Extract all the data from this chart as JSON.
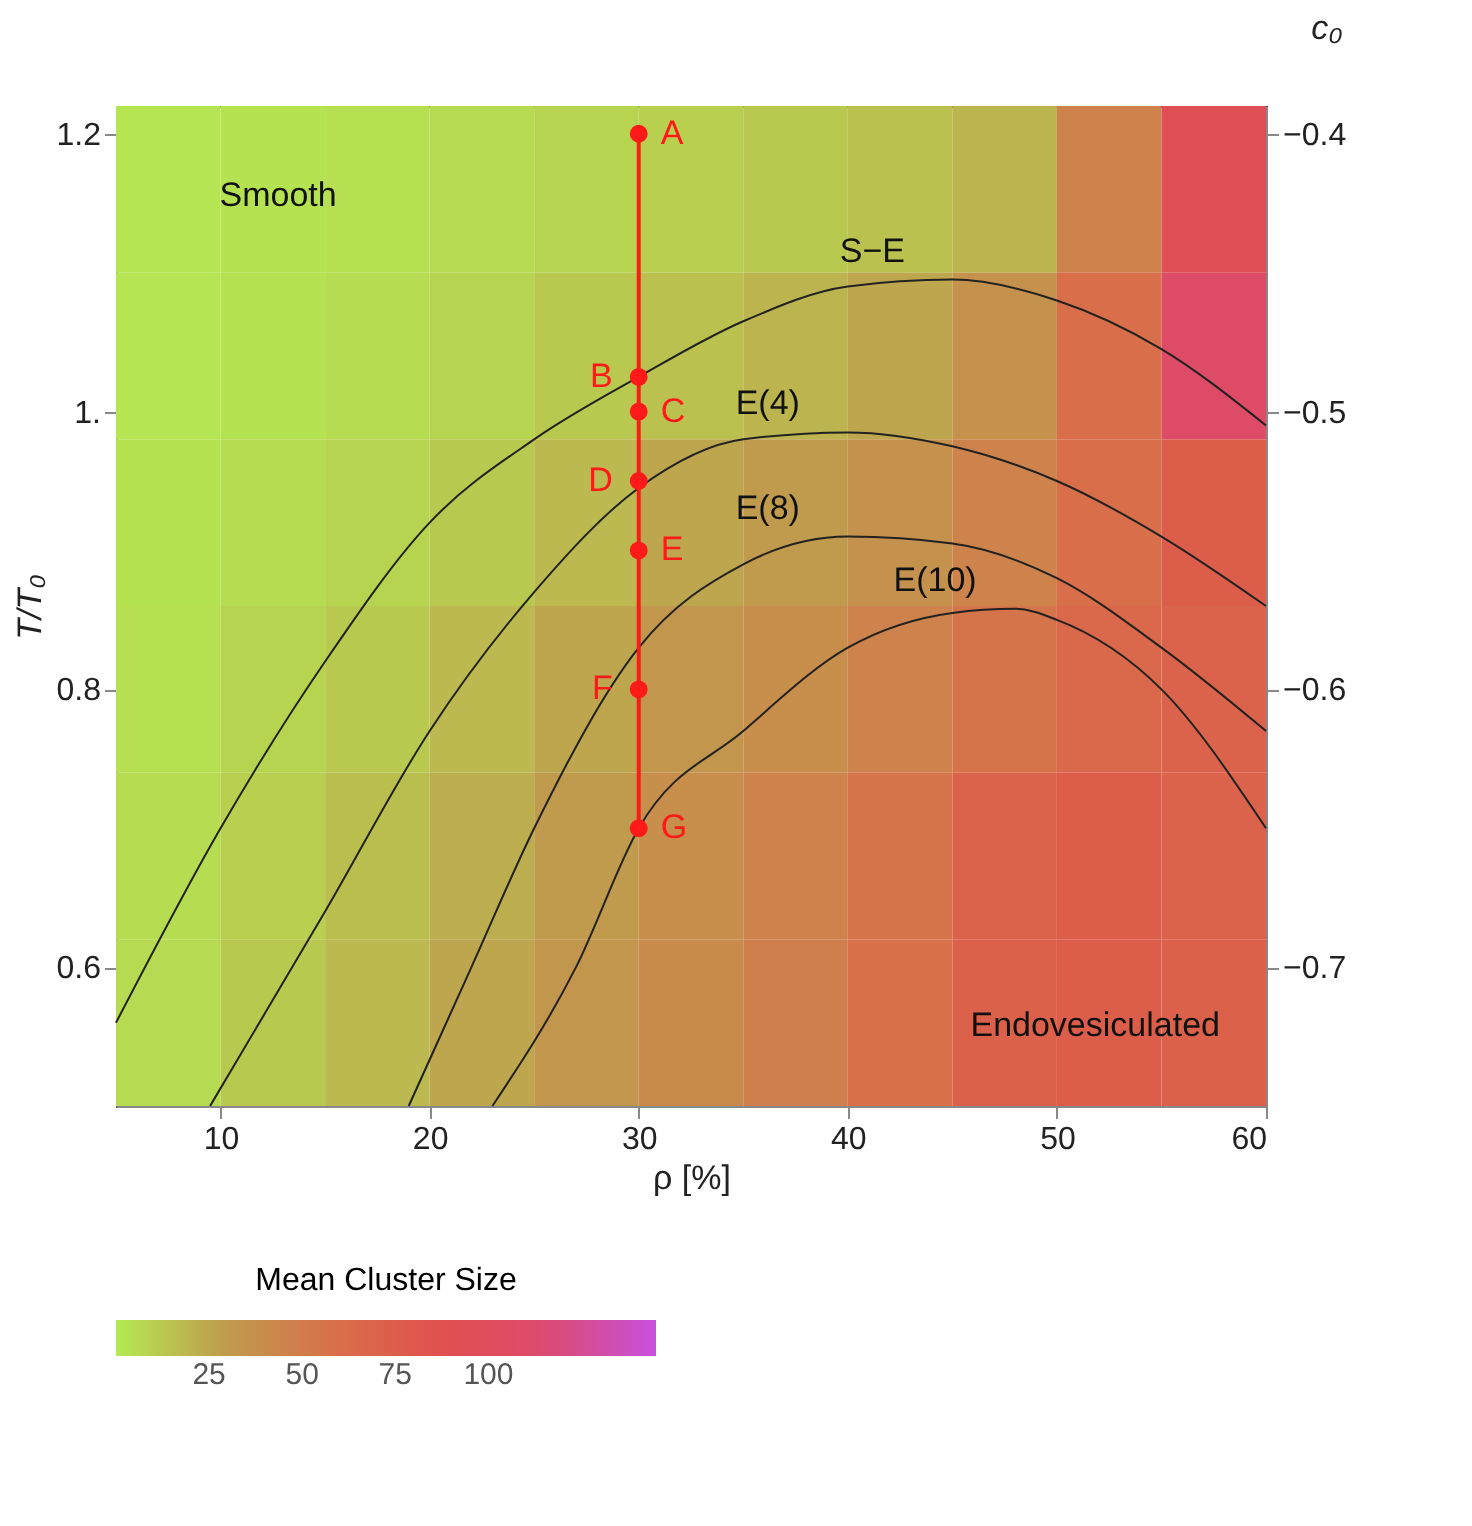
{
  "chart_data": {
    "type": "heatmap",
    "x": [
      7.5,
      12.5,
      17.5,
      22.5,
      27.5,
      32.5,
      37.5,
      42.5,
      47.5,
      52.5,
      57.5
    ],
    "cells": [
      [
        2,
        3,
        4,
        6,
        8,
        10,
        12,
        15,
        20,
        45,
        95
      ],
      [
        2,
        3,
        5,
        8,
        12,
        15,
        20,
        25,
        35,
        60,
        110
      ],
      [
        3,
        5,
        8,
        12,
        18,
        25,
        30,
        35,
        45,
        60,
        75
      ],
      [
        4,
        8,
        12,
        18,
        25,
        32,
        38,
        45,
        55,
        65,
        70
      ],
      [
        5,
        10,
        16,
        22,
        30,
        38,
        45,
        55,
        70,
        75,
        70
      ],
      [
        6,
        12,
        18,
        25,
        32,
        40,
        48,
        58,
        72,
        75,
        72
      ]
    ],
    "xlabel": "ρ [%]",
    "ylabel": "T/T₀",
    "y2label": "c₀",
    "clabel": "Mean Cluster Size",
    "clim": [
      0,
      145
    ],
    "cticks": [
      25,
      50,
      75,
      100
    ],
    "xlim": [
      5,
      60
    ],
    "xticks": [
      10,
      20,
      30,
      40,
      50,
      60
    ],
    "ylim": [
      0.5,
      1.22
    ],
    "yticks": [
      {
        "value": 0.6,
        "label": "0.6"
      },
      {
        "value": 0.8,
        "label": "0.8"
      },
      {
        "value": 1,
        "label": "1."
      },
      {
        "value": 1.2,
        "label": "1.2"
      }
    ],
    "y2lim": [
      -0.75,
      -0.39
    ],
    "y2ticks": [
      {
        "value": -0.4,
        "label": "−0.4"
      },
      {
        "value": -0.5,
        "label": "−0.5"
      },
      {
        "value": -0.6,
        "label": "−0.6"
      },
      {
        "value": -0.7,
        "label": "−0.7"
      }
    ],
    "series": [
      {
        "type": "line",
        "color": "#222222",
        "x": [
          5,
          10,
          15,
          20,
          25,
          30,
          35,
          40,
          45,
          50,
          55,
          60
        ],
        "values": [
          0.56,
          0.7,
          0.82,
          0.92,
          0.98,
          1.025,
          1.065,
          1.09,
          1.095,
          1.08,
          1.045,
          0.99
        ]
      },
      {
        "type": "line",
        "color": "#222222",
        "x": [
          9.5,
          15,
          20,
          25,
          30,
          35,
          40,
          45,
          50,
          55,
          60
        ],
        "values": [
          0.5,
          0.64,
          0.77,
          0.87,
          0.945,
          0.98,
          0.985,
          0.975,
          0.95,
          0.91,
          0.86
        ]
      },
      {
        "type": "line",
        "color": "#222222",
        "x": [
          19,
          22,
          25,
          30,
          35,
          40,
          45,
          50,
          55,
          60
        ],
        "values": [
          0.5,
          0.6,
          0.7,
          0.83,
          0.89,
          0.91,
          0.905,
          0.88,
          0.83,
          0.77
        ]
      },
      {
        "type": "line",
        "color": "#222222",
        "x": [
          23,
          27,
          30,
          35,
          40,
          45,
          48,
          50,
          55,
          60
        ],
        "values": [
          0.5,
          0.6,
          0.7,
          0.77,
          0.83,
          0.855,
          0.858,
          0.85,
          0.8,
          0.7
        ]
      },
      {
        "type": "line",
        "color": "#ff1a1a",
        "marker": "circle",
        "x": [
          30,
          30,
          30,
          30,
          30,
          30,
          30
        ],
        "values": [
          1.2,
          1.025,
          1.0,
          0.95,
          0.9,
          0.8,
          0.7
        ]
      }
    ],
    "annotations": [
      "Smooth",
      "Endovesiculated",
      "S−E",
      "E(4)",
      "E(8)",
      "E(10)",
      "A",
      "B",
      "C",
      "D",
      "E",
      "F",
      "G"
    ]
  }
}
